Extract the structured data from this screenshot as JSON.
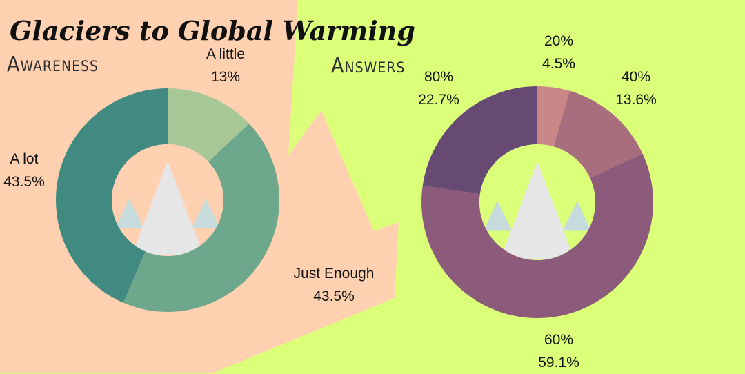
{
  "title": "Glaciers to Global Warming",
  "colors": {
    "background_peach": "#ffd1b0",
    "background_lime": "#dcff7a",
    "mountain_main": "#e6e6e6",
    "mountain_side": "#c6dcdc"
  },
  "chart_data": [
    {
      "type": "pie",
      "variant": "donut",
      "title": "Awareness",
      "title_bar_color": "#a8c797",
      "slices": [
        {
          "label": "A little",
          "percent": "13%",
          "value": 13,
          "color": "#a8c797"
        },
        {
          "label": "Just Enough",
          "percent": "43.5%",
          "value": 43.5,
          "color": "#6ea88c"
        },
        {
          "label": "A lot",
          "percent": "43.5%",
          "value": 43.5,
          "color": "#418a82"
        }
      ]
    },
    {
      "type": "pie",
      "variant": "donut",
      "title": "Answers",
      "title_bar_color": "#c98787",
      "slices": [
        {
          "label": "20%",
          "percent": "4.5%",
          "value": 4.5,
          "color": "#c98787"
        },
        {
          "label": "40%",
          "percent": "13.6%",
          "value": 13.6,
          "color": "#a86e7d"
        },
        {
          "label": "60%",
          "percent": "59.1%",
          "value": 59.1,
          "color": "#8c5a7b"
        },
        {
          "label": "80%",
          "percent": "22.7%",
          "value": 22.7,
          "color": "#664a73"
        }
      ]
    }
  ]
}
